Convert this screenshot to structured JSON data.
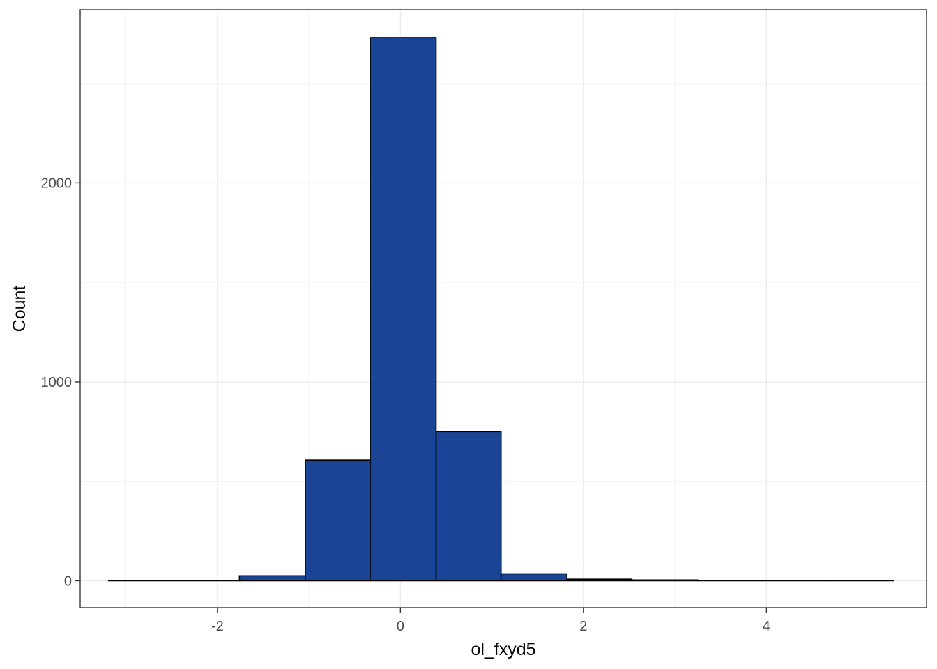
{
  "chart_data": {
    "type": "bar",
    "title": "",
    "xlabel": "ol_fxyd5",
    "ylabel": "Count",
    "xlim": [
      -3.5,
      5.75
    ],
    "ylim": [
      -135,
      2870
    ],
    "x_ticks": [
      -2,
      0,
      2,
      4
    ],
    "x_tick_labels": [
      "-2",
      "0",
      "2",
      "4"
    ],
    "y_ticks": [
      0,
      1000,
      2000
    ],
    "y_tick_labels": [
      "0",
      "1000",
      "2000"
    ],
    "grid": true,
    "legend": "none",
    "bar_color": "#1a4597",
    "bar_outline": "#000000",
    "bins": [
      {
        "x0": -3.19,
        "x1": -2.47,
        "count": 1
      },
      {
        "x0": -2.47,
        "x1": -1.76,
        "count": 2
      },
      {
        "x0": -1.76,
        "x1": -1.04,
        "count": 25
      },
      {
        "x0": -1.04,
        "x1": -0.33,
        "count": 607
      },
      {
        "x0": -0.33,
        "x1": 0.39,
        "count": 2730
      },
      {
        "x0": 0.39,
        "x1": 1.1,
        "count": 750
      },
      {
        "x0": 1.1,
        "x1": 1.82,
        "count": 35
      },
      {
        "x0": 1.82,
        "x1": 2.53,
        "count": 8
      },
      {
        "x0": 2.53,
        "x1": 3.25,
        "count": 4
      },
      {
        "x0": 3.25,
        "x1": 3.96,
        "count": 1
      },
      {
        "x0": 3.96,
        "x1": 4.68,
        "count": 1
      },
      {
        "x0": 4.68,
        "x1": 5.39,
        "count": 1
      }
    ]
  }
}
